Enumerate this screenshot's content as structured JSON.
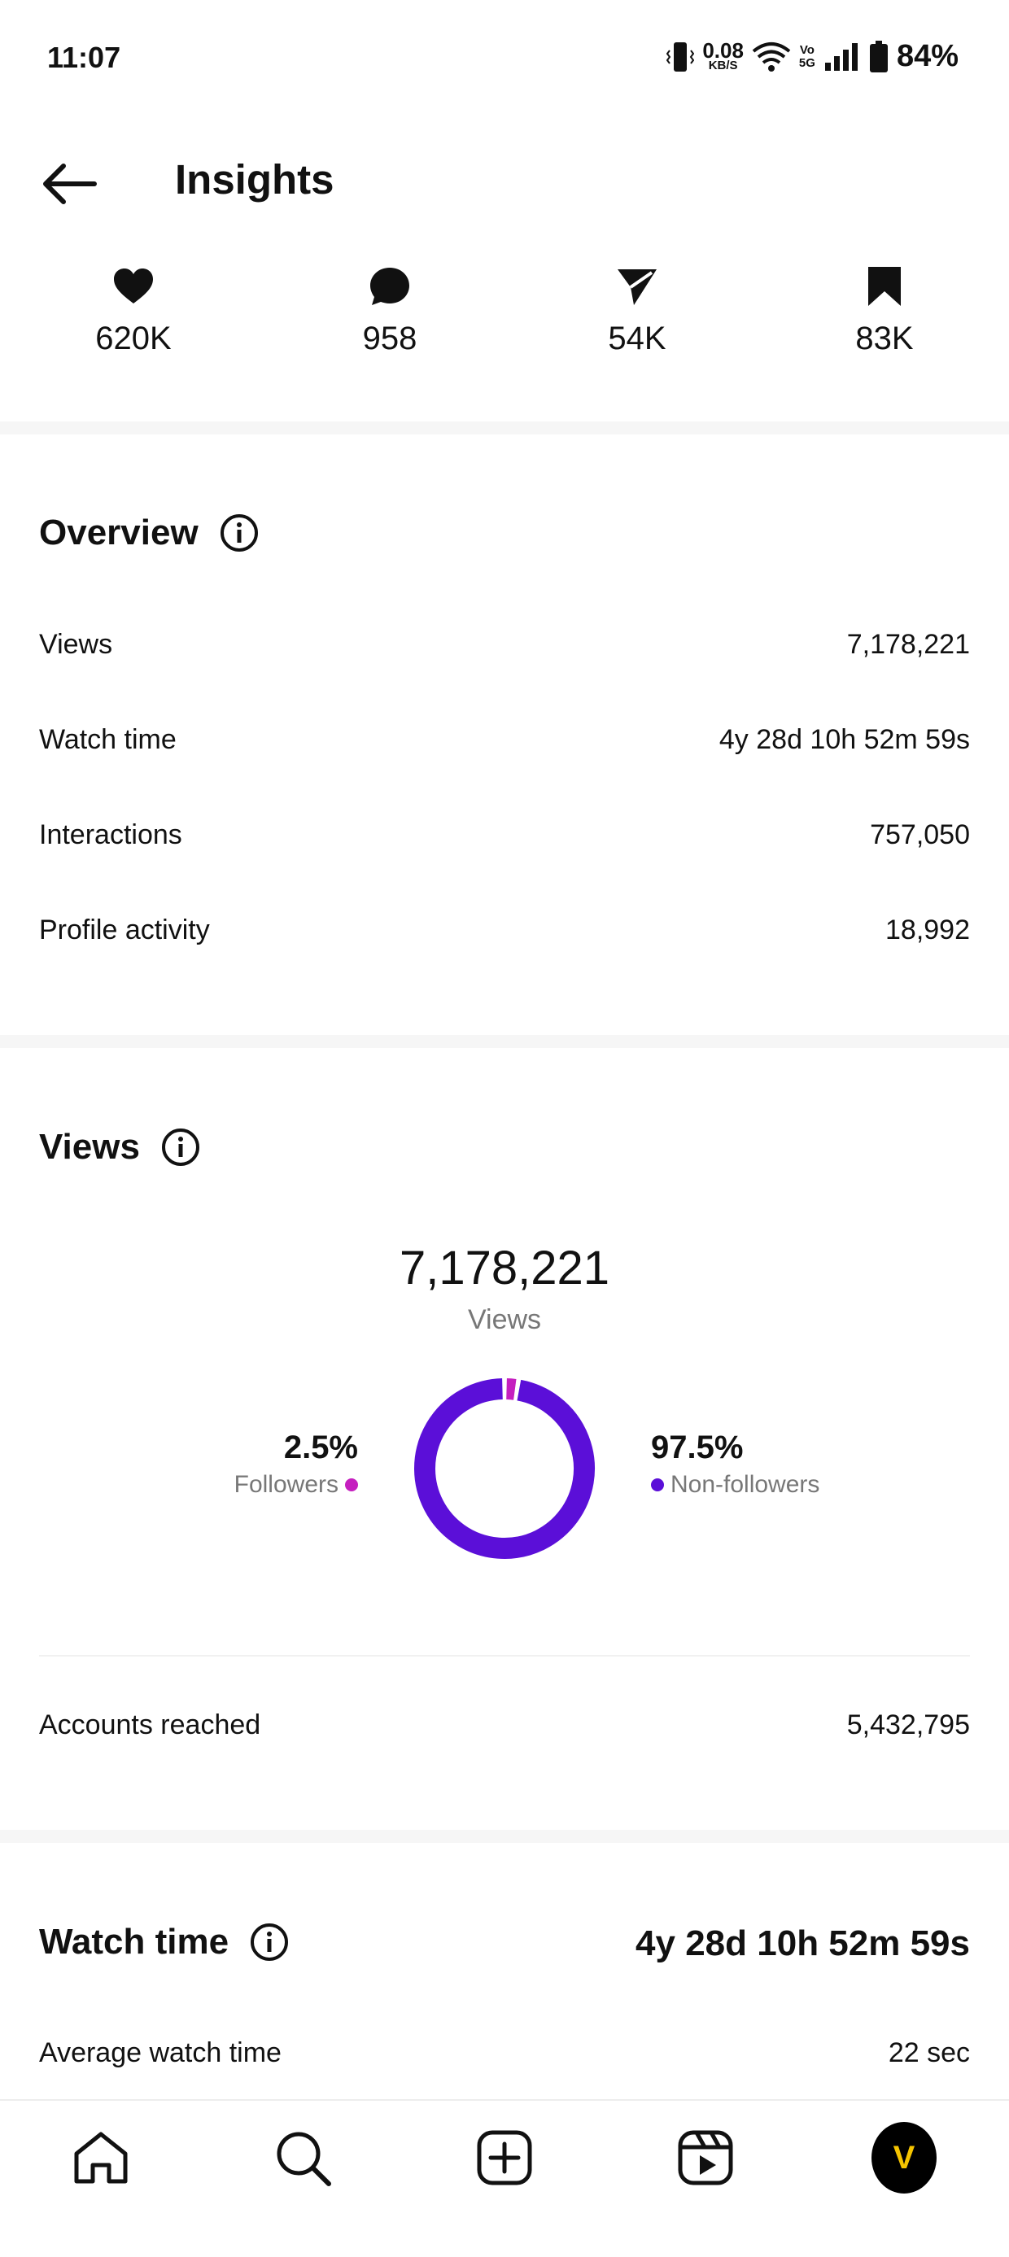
{
  "status_bar": {
    "time": "11:07",
    "data_rate": "0.08",
    "data_unit": "KB/S",
    "volte_top": "Vo",
    "volte_bottom": "5G",
    "battery": "84%"
  },
  "header": {
    "title": "Insights"
  },
  "stats": {
    "likes": "620K",
    "comments": "958",
    "shares": "54K",
    "saves": "83K"
  },
  "overview": {
    "title": "Overview",
    "rows": [
      {
        "label": "Views",
        "value": "7,178,221"
      },
      {
        "label": "Watch time",
        "value": "4y 28d 10h 52m 59s"
      },
      {
        "label": "Interactions",
        "value": "757,050"
      },
      {
        "label": "Profile activity",
        "value": "18,992"
      }
    ]
  },
  "views": {
    "title": "Views",
    "total": "7,178,221",
    "total_label": "Views",
    "followers_pct": "2.5%",
    "followers_label": "Followers",
    "nonfollowers_pct": "97.5%",
    "nonfollowers_label": "Non-followers",
    "accounts_reached_label": "Accounts reached",
    "accounts_reached_value": "5,432,795"
  },
  "chart_data": {
    "type": "pie",
    "categories": [
      "Followers",
      "Non-followers"
    ],
    "values": [
      2.5,
      97.5
    ],
    "colors": [
      "#c51fbf",
      "#5b0fd8"
    ]
  },
  "watch_time": {
    "title": "Watch time",
    "value": "4y 28d 10h 52m 59s",
    "avg_label": "Average watch time",
    "avg_value": "22 sec"
  },
  "nav": {
    "items": [
      "home-icon",
      "search-icon",
      "create-icon",
      "reels-icon",
      "profile-avatar"
    ],
    "avatar_letter": "V"
  },
  "colors": {
    "followers": "#c51fbf",
    "nonfollowers": "#5b0fd8",
    "avatar_bg": "#000000",
    "avatar_fg": "#f5c400"
  }
}
